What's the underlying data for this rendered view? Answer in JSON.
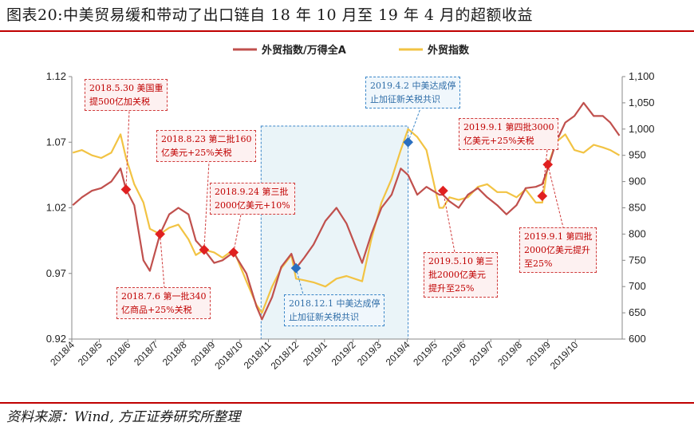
{
  "title": "图表20:中美贸易缓和带动了出口链自 18 年 10 月至 19 年 4 月的超额收益",
  "source": "资料来源：Wind, 方正证券研究所整理",
  "colors": {
    "series1": "#c0504d",
    "series2": "#f2c343",
    "rule": "#c00000",
    "marker": "#e02020",
    "marker_blue": "#2a6fc0",
    "shade": "#eaf4f8"
  },
  "chart_data": {
    "type": "line",
    "x_ticks": [
      "2018/4",
      "2018/5",
      "2018/6",
      "2018/7",
      "2018/8",
      "2018/9",
      "2018/10",
      "2018/11",
      "2018/12",
      "2019/1",
      "2019/2",
      "2019/3",
      "2019/4",
      "2019/5",
      "2019/6",
      "2019/7",
      "2019/8",
      "2019/9",
      "2019/10"
    ],
    "y_left": {
      "ticks": [
        "1.12",
        "1.07",
        "1.02",
        "0.97",
        "0.92"
      ],
      "min": 0.92,
      "max": 1.12
    },
    "y_right": {
      "ticks": [
        "1,100",
        "1,050",
        "1,000",
        "950",
        "900",
        "850",
        "800",
        "750",
        "700",
        "650",
        "600"
      ],
      "min": 600,
      "max": 1100
    },
    "legend_position": "top",
    "shaded_range": [
      "2018/10/24",
      "2019/4/2"
    ],
    "series": [
      {
        "name": "外贸指数/万得全A",
        "axis": "left",
        "points": [
          [
            "2018/4/2",
            1.022
          ],
          [
            "2018/4/12",
            1.028
          ],
          [
            "2018/4/23",
            1.033
          ],
          [
            "2018/5/3",
            1.035
          ],
          [
            "2018/5/14",
            1.04
          ],
          [
            "2018/5/24",
            1.05
          ],
          [
            "2018/5/30",
            1.034
          ],
          [
            "2018/6/8",
            1.022
          ],
          [
            "2018/6/18",
            0.98
          ],
          [
            "2018/6/25",
            0.972
          ],
          [
            "2018/7/6",
            1.0
          ],
          [
            "2018/7/16",
            1.015
          ],
          [
            "2018/7/26",
            1.02
          ],
          [
            "2018/8/6",
            1.015
          ],
          [
            "2018/8/14",
            0.995
          ],
          [
            "2018/8/23",
            0.988
          ],
          [
            "2018/9/3",
            0.978
          ],
          [
            "2018/9/12",
            0.98
          ],
          [
            "2018/9/24",
            0.986
          ],
          [
            "2018/10/8",
            0.97
          ],
          [
            "2018/10/19",
            0.945
          ],
          [
            "2018/10/25",
            0.935
          ],
          [
            "2018/11/5",
            0.952
          ],
          [
            "2018/11/15",
            0.975
          ],
          [
            "2018/11/26",
            0.985
          ],
          [
            "2018/12/1",
            0.974
          ],
          [
            "2018/12/10",
            0.982
          ],
          [
            "2018/12/20",
            0.992
          ],
          [
            "2019/1/2",
            1.01
          ],
          [
            "2019/1/14",
            1.02
          ],
          [
            "2019/1/25",
            1.008
          ],
          [
            "2019/2/11",
            0.978
          ],
          [
            "2019/2/21",
            1.0
          ],
          [
            "2019/3/4",
            1.02
          ],
          [
            "2019/3/15",
            1.03
          ],
          [
            "2019/3/25",
            1.05
          ],
          [
            "2019/4/2",
            1.045
          ],
          [
            "2019/4/12",
            1.03
          ],
          [
            "2019/4/22",
            1.036
          ],
          [
            "2019/5/6",
            1.03
          ],
          [
            "2019/5/10",
            1.03
          ],
          [
            "2019/5/17",
            1.025
          ],
          [
            "2019/5/27",
            1.02
          ],
          [
            "2019/6/6",
            1.03
          ],
          [
            "2019/6/17",
            1.035
          ],
          [
            "2019/6/27",
            1.028
          ],
          [
            "2019/7/8",
            1.022
          ],
          [
            "2019/7/18",
            1.015
          ],
          [
            "2019/7/29",
            1.022
          ],
          [
            "2019/8/8",
            1.035
          ],
          [
            "2019/8/19",
            1.036
          ],
          [
            "2019/8/26",
            1.038
          ],
          [
            "2019/9/1",
            1.05
          ],
          [
            "2019/9/10",
            1.07
          ],
          [
            "2019/9/20",
            1.085
          ],
          [
            "2019/9/30",
            1.09
          ],
          [
            "2019/10/10",
            1.1
          ],
          [
            "2019/10/21",
            1.09
          ],
          [
            "2019/10/31",
            1.09
          ],
          [
            "2019/11/8",
            1.085
          ],
          [
            "2019/11/18",
            1.075
          ]
        ]
      },
      {
        "name": "外贸指数",
        "axis": "right",
        "points": [
          [
            "2018/4/2",
            955
          ],
          [
            "2018/4/12",
            960
          ],
          [
            "2018/4/23",
            950
          ],
          [
            "2018/5/3",
            945
          ],
          [
            "2018/5/14",
            955
          ],
          [
            "2018/5/24",
            990
          ],
          [
            "2018/5/30",
            945
          ],
          [
            "2018/6/8",
            895
          ],
          [
            "2018/6/18",
            860
          ],
          [
            "2018/6/25",
            810
          ],
          [
            "2018/7/6",
            800
          ],
          [
            "2018/7/16",
            812
          ],
          [
            "2018/7/26",
            818
          ],
          [
            "2018/8/6",
            790
          ],
          [
            "2018/8/14",
            760
          ],
          [
            "2018/8/23",
            770
          ],
          [
            "2018/9/3",
            765
          ],
          [
            "2018/9/12",
            755
          ],
          [
            "2018/9/24",
            770
          ],
          [
            "2018/10/8",
            710
          ],
          [
            "2018/10/19",
            665
          ],
          [
            "2018/10/25",
            650
          ],
          [
            "2018/11/5",
            700
          ],
          [
            "2018/11/15",
            735
          ],
          [
            "2018/11/26",
            760
          ],
          [
            "2018/12/1",
            715
          ],
          [
            "2018/12/10",
            712
          ],
          [
            "2018/12/20",
            708
          ],
          [
            "2019/1/2",
            700
          ],
          [
            "2019/1/14",
            715
          ],
          [
            "2019/1/25",
            720
          ],
          [
            "2019/2/11",
            710
          ],
          [
            "2019/2/21",
            790
          ],
          [
            "2019/3/4",
            860
          ],
          [
            "2019/3/15",
            905
          ],
          [
            "2019/3/25",
            960
          ],
          [
            "2019/4/2",
            1000
          ],
          [
            "2019/4/12",
            985
          ],
          [
            "2019/4/22",
            960
          ],
          [
            "2019/5/6",
            850
          ],
          [
            "2019/5/10",
            850
          ],
          [
            "2019/5/17",
            870
          ],
          [
            "2019/5/27",
            865
          ],
          [
            "2019/6/6",
            870
          ],
          [
            "2019/6/17",
            890
          ],
          [
            "2019/6/27",
            895
          ],
          [
            "2019/7/8",
            880
          ],
          [
            "2019/7/18",
            880
          ],
          [
            "2019/7/29",
            870
          ],
          [
            "2019/8/8",
            885
          ],
          [
            "2019/8/19",
            860
          ],
          [
            "2019/8/26",
            860
          ],
          [
            "2019/9/1",
            930
          ],
          [
            "2019/9/10",
            975
          ],
          [
            "2019/9/20",
            990
          ],
          [
            "2019/9/30",
            960
          ],
          [
            "2019/10/10",
            955
          ],
          [
            "2019/10/21",
            970
          ],
          [
            "2019/10/31",
            965
          ],
          [
            "2019/11/8",
            960
          ],
          [
            "2019/11/18",
            950
          ]
        ]
      }
    ],
    "annotations": [
      {
        "text": "2018.5.30 美国重\n提500亿加关税",
        "style": "red",
        "anchor": [
          "2018/5/30",
          1.034
        ]
      },
      {
        "text": "2018.7.6 第一批340\n亿商品+25%关税",
        "style": "red",
        "anchor": [
          "2018/7/6",
          1.0
        ]
      },
      {
        "text": "2018.8.23 第二批160\n亿美元+25%关税",
        "style": "red",
        "anchor": [
          "2018/8/23",
          0.988
        ]
      },
      {
        "text": "2018.9.24 第三批\n2000亿美元+10%",
        "style": "red",
        "anchor": [
          "2018/9/24",
          0.986
        ]
      },
      {
        "text": "2018.12.1 中美达成停\n止加征新关税共识",
        "style": "blue",
        "anchor": [
          "2018/12/1",
          0.974
        ]
      },
      {
        "text": "2019.4.2 中美达成停\n止加征新关税共识",
        "style": "blue",
        "anchor": [
          "2019/4/2",
          1.07
        ]
      },
      {
        "text": "2019.5.10 第三\n批2000亿美元\n提升至25%",
        "style": "red",
        "anchor": [
          "2019/5/10",
          1.033
        ]
      },
      {
        "text": "2019.9.1 第四批3000\n亿美元+25%关税",
        "style": "red",
        "anchor": [
          "2019/8/26",
          1.029
        ]
      },
      {
        "text": "2019.9.1 第四批\n2000亿美元提升\n至25%",
        "style": "red",
        "anchor": [
          "2019/9/1",
          1.053
        ]
      }
    ]
  }
}
